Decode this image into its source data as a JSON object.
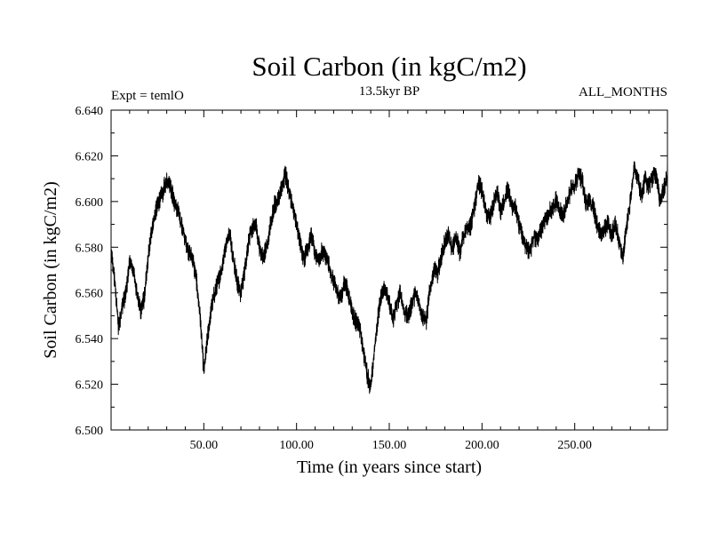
{
  "chart_data": {
    "type": "line",
    "title": "Soil Carbon (in kgC/m2)",
    "left_note": "Expt = temlO",
    "center_note": "13.5kyr BP",
    "right_note": "ALL_MONTHS",
    "xlabel": "Time (in years since start)",
    "ylabel": "Soil Carbon (in kgC/m2)",
    "xlim": [
      0,
      300
    ],
    "ylim": [
      6.5,
      6.64
    ],
    "xticks": [
      50,
      100,
      150,
      200,
      250
    ],
    "xtick_labels": [
      "50.00",
      "100.00",
      "150.00",
      "200.00",
      "250.00"
    ],
    "yticks": [
      6.5,
      6.52,
      6.54,
      6.56,
      6.58,
      6.6,
      6.62,
      6.64
    ],
    "ytick_labels": [
      "6.500",
      "6.520",
      "6.540",
      "6.560",
      "6.580",
      "6.600",
      "6.620",
      "6.640"
    ],
    "line_color": "#000000",
    "band_halfwidth": 0.0035,
    "series": [
      {
        "name": "Soil Carbon",
        "x": [
          0,
          2,
          4,
          6,
          8,
          10,
          12,
          14,
          16,
          18,
          20,
          22,
          24,
          26,
          28,
          30,
          32,
          34,
          36,
          38,
          40,
          42,
          44,
          46,
          48,
          50,
          52,
          54,
          56,
          58,
          60,
          62,
          64,
          66,
          68,
          70,
          72,
          74,
          76,
          78,
          80,
          82,
          84,
          86,
          88,
          90,
          92,
          94,
          96,
          98,
          100,
          102,
          104,
          106,
          108,
          110,
          112,
          114,
          116,
          118,
          120,
          122,
          124,
          126,
          128,
          130,
          132,
          134,
          136,
          138,
          140,
          142,
          144,
          146,
          148,
          150,
          152,
          154,
          156,
          158,
          160,
          162,
          164,
          166,
          168,
          170,
          172,
          174,
          176,
          178,
          180,
          182,
          184,
          186,
          188,
          190,
          192,
          194,
          196,
          198,
          200,
          202,
          204,
          206,
          208,
          210,
          212,
          214,
          216,
          218,
          220,
          222,
          224,
          226,
          228,
          230,
          232,
          234,
          236,
          238,
          240,
          242,
          244,
          246,
          248,
          250,
          252,
          254,
          256,
          258,
          260,
          262,
          264,
          266,
          268,
          270,
          272,
          274,
          276,
          278,
          280,
          282,
          284,
          286,
          288,
          290,
          292,
          294,
          296,
          298,
          300
        ],
        "y": [
          6.578,
          6.565,
          6.545,
          6.555,
          6.56,
          6.574,
          6.57,
          6.56,
          6.552,
          6.558,
          6.575,
          6.588,
          6.595,
          6.6,
          6.604,
          6.61,
          6.607,
          6.6,
          6.596,
          6.59,
          6.583,
          6.578,
          6.575,
          6.566,
          6.55,
          6.525,
          6.54,
          6.553,
          6.56,
          6.565,
          6.572,
          6.582,
          6.586,
          6.575,
          6.565,
          6.56,
          6.57,
          6.582,
          6.588,
          6.59,
          6.58,
          6.575,
          6.58,
          6.59,
          6.598,
          6.6,
          6.606,
          6.612,
          6.605,
          6.598,
          6.59,
          6.582,
          6.575,
          6.58,
          6.585,
          6.577,
          6.575,
          6.578,
          6.575,
          6.57,
          6.565,
          6.56,
          6.558,
          6.565,
          6.56,
          6.552,
          6.548,
          6.545,
          6.535,
          6.525,
          6.518,
          6.535,
          6.55,
          6.56,
          6.562,
          6.555,
          6.548,
          6.555,
          6.56,
          6.552,
          6.55,
          6.555,
          6.56,
          6.556,
          6.55,
          6.548,
          6.562,
          6.57,
          6.568,
          6.575,
          6.582,
          6.585,
          6.578,
          6.585,
          6.578,
          6.585,
          6.588,
          6.59,
          6.598,
          6.608,
          6.605,
          6.595,
          6.592,
          6.598,
          6.605,
          6.595,
          6.6,
          6.605,
          6.598,
          6.597,
          6.59,
          6.585,
          6.58,
          6.578,
          6.585,
          6.583,
          6.588,
          6.592,
          6.595,
          6.597,
          6.6,
          6.595,
          6.594,
          6.6,
          6.605,
          6.607,
          6.612,
          6.61,
          6.6,
          6.6,
          6.598,
          6.59,
          6.586,
          6.588,
          6.59,
          6.585,
          6.59,
          6.582,
          6.575,
          6.59,
          6.6,
          6.615,
          6.61,
          6.603,
          6.61,
          6.607,
          6.611,
          6.612,
          6.6,
          6.605,
          6.612
        ]
      }
    ]
  }
}
